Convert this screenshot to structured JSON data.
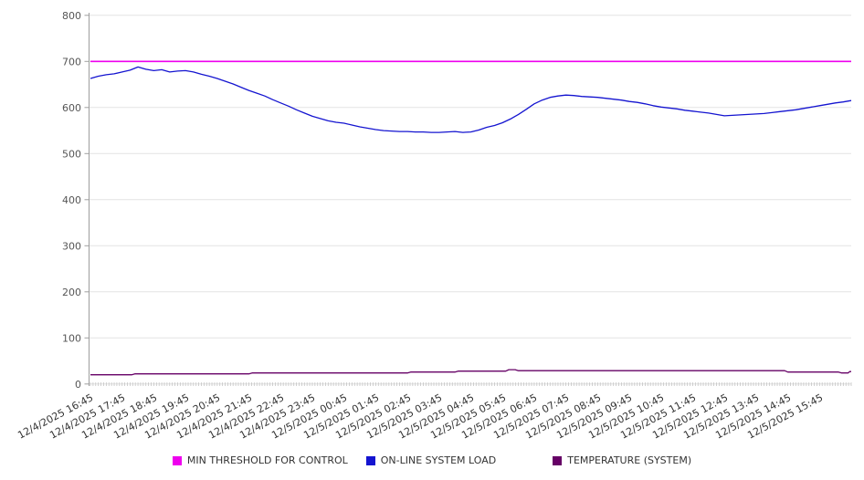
{
  "chart_data": {
    "type": "line",
    "xlabel": "",
    "ylabel": "",
    "ylim": [
      0,
      800
    ],
    "ytick_step": 100,
    "y_tick_labels": [
      "0",
      "100",
      "200",
      "300",
      "400",
      "500",
      "600",
      "700",
      "800"
    ],
    "x_hours_span": 24,
    "minor_ticks_per_hour": 12,
    "grid": "horizontal",
    "legend_position": "bottom",
    "x_tick_labels": [
      "12/4/2025 16:45",
      "12/4/2025 17:45",
      "12/4/2025 18:45",
      "12/4/2025 19:45",
      "12/4/2025 20:45",
      "12/4/2025 21:45",
      "12/4/2025 22:45",
      "12/4/2025 23:45",
      "12/5/2025 00:45",
      "12/5/2025 01:45",
      "12/5/2025 02:45",
      "12/5/2025 03:45",
      "12/5/2025 04:45",
      "12/5/2025 05:45",
      "12/5/2025 06:45",
      "12/5/2025 07:45",
      "12/5/2025 08:45",
      "12/5/2025 09:45",
      "12/5/2025 10:45",
      "12/5/2025 11:45",
      "12/5/2025 12:45",
      "12/5/2025 13:45",
      "12/5/2025 14:45",
      "12/5/2025 15:45"
    ],
    "series": [
      {
        "name": "MIN THRESHOLD FOR CONTROL",
        "color": "#EE00EE",
        "width": 1.6,
        "points": [
          [
            0,
            700
          ],
          [
            24,
            700
          ]
        ]
      },
      {
        "name": "ON-LINE SYSTEM LOAD",
        "color": "#1414D0",
        "width": 1.3,
        "x_start": 0,
        "x_step": 0.25,
        "values": [
          663,
          668,
          671,
          673,
          677,
          681,
          688,
          683,
          680,
          682,
          677,
          679,
          680,
          677,
          672,
          668,
          663,
          657,
          651,
          644,
          637,
          631,
          625,
          617,
          610,
          603,
          595,
          588,
          581,
          576,
          571,
          568,
          566,
          562,
          558,
          555,
          552,
          550,
          549,
          548,
          548,
          547,
          547,
          546,
          546,
          547,
          548,
          546,
          547,
          551,
          557,
          561,
          567,
          575,
          585,
          596,
          608,
          616,
          622,
          625,
          627,
          626,
          624,
          623,
          622,
          620,
          618,
          616,
          613,
          611,
          608,
          604,
          601,
          599,
          597,
          594,
          592,
          590,
          588,
          585,
          582,
          583,
          584,
          585,
          586,
          587,
          589,
          591,
          593,
          595,
          598,
          601,
          604,
          607,
          610,
          612,
          615
        ]
      },
      {
        "name": "TEMPERATURE (SYSTEM)",
        "color": "#660066",
        "width": 1.3,
        "points": [
          [
            0,
            20
          ],
          [
            1.3,
            20
          ],
          [
            1.4,
            22
          ],
          [
            5,
            22
          ],
          [
            5.1,
            24
          ],
          [
            10,
            24
          ],
          [
            10.1,
            26
          ],
          [
            11.5,
            26
          ],
          [
            11.6,
            28
          ],
          [
            13.1,
            28
          ],
          [
            13.2,
            31
          ],
          [
            13.4,
            31
          ],
          [
            13.5,
            29
          ],
          [
            21.9,
            29
          ],
          [
            22,
            26
          ],
          [
            23.6,
            26
          ],
          [
            23.7,
            24
          ],
          [
            23.9,
            24
          ],
          [
            23.95,
            27
          ],
          [
            24,
            27
          ]
        ]
      }
    ]
  },
  "legend": {
    "items": [
      {
        "label": "MIN THRESHOLD FOR CONTROL"
      },
      {
        "label": "ON-LINE SYSTEM LOAD"
      },
      {
        "label": "TEMPERATURE (SYSTEM)"
      }
    ]
  }
}
